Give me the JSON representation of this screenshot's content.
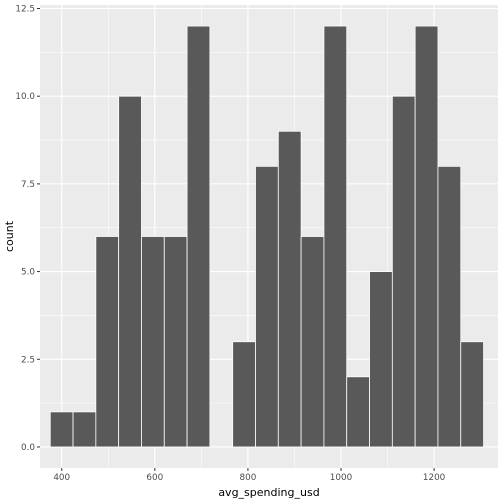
{
  "chart_data": {
    "type": "bar",
    "subtype": "histogram",
    "xlabel": "avg_spending_usd",
    "ylabel": "count",
    "xlim": [
      353.3,
      1337.3
    ],
    "ylim": [
      -0.6,
      12.6
    ],
    "x_ticks": [
      400,
      600,
      800,
      1000,
      1200
    ],
    "x_tick_labels": [
      "400",
      "600",
      "800",
      "1000",
      "1200"
    ],
    "y_ticks": [
      0,
      2.5,
      5,
      7.5,
      10,
      12.5
    ],
    "y_tick_labels": [
      "0.0",
      "2.5",
      "5.0",
      "7.5",
      "10.0",
      "12.5"
    ],
    "bins": [
      {
        "x_start": 375.3,
        "x_end": 424.3,
        "count": 1
      },
      {
        "x_start": 424.3,
        "x_end": 473.3,
        "count": 1
      },
      {
        "x_start": 473.3,
        "x_end": 522.3,
        "count": 6
      },
      {
        "x_start": 522.3,
        "x_end": 571.3,
        "count": 10
      },
      {
        "x_start": 571.3,
        "x_end": 620.3,
        "count": 6
      },
      {
        "x_start": 620.3,
        "x_end": 669.3,
        "count": 6
      },
      {
        "x_start": 669.3,
        "x_end": 718.3,
        "count": 12
      },
      {
        "x_start": 718.3,
        "x_end": 767.3,
        "count": 0
      },
      {
        "x_start": 767.3,
        "x_end": 816.3,
        "count": 3
      },
      {
        "x_start": 816.3,
        "x_end": 865.3,
        "count": 8
      },
      {
        "x_start": 865.3,
        "x_end": 914.3,
        "count": 9
      },
      {
        "x_start": 914.3,
        "x_end": 963.3,
        "count": 6
      },
      {
        "x_start": 963.3,
        "x_end": 1012.3,
        "count": 12
      },
      {
        "x_start": 1012.3,
        "x_end": 1061.3,
        "count": 2
      },
      {
        "x_start": 1061.3,
        "x_end": 1110.3,
        "count": 5
      },
      {
        "x_start": 1110.3,
        "x_end": 1159.3,
        "count": 10
      },
      {
        "x_start": 1159.3,
        "x_end": 1208.3,
        "count": 12
      },
      {
        "x_start": 1208.3,
        "x_end": 1257.3,
        "count": 8
      },
      {
        "x_start": 1257.3,
        "x_end": 1306.3,
        "count": 3
      }
    ],
    "bar_fill": "#595959",
    "bar_outline": "#ffffff",
    "panel_background": "#ebebeb",
    "grid_color": "#ffffff",
    "grid": true,
    "legend": "none"
  }
}
